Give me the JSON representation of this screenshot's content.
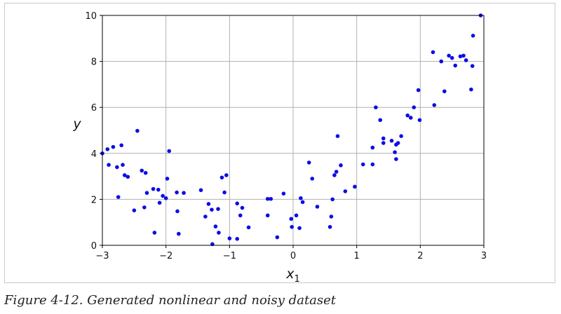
{
  "chart_data": {
    "type": "scatter",
    "title": "",
    "xlabel": "x",
    "xlabel_subscript": "1",
    "ylabel": "y",
    "xlim": [
      -3,
      3
    ],
    "ylim": [
      0,
      10
    ],
    "xticks": [
      -3,
      -2,
      -1,
      0,
      1,
      2,
      3
    ],
    "yticks": [
      0,
      2,
      4,
      6,
      8,
      10
    ],
    "xtick_labels": [
      "−3",
      "−2",
      "−1",
      "0",
      "1",
      "2",
      "3"
    ],
    "ytick_labels": [
      "0",
      "2",
      "4",
      "6",
      "8",
      "10"
    ],
    "grid": true,
    "marker_color": "#0d0de6",
    "points": [
      [
        -3.0,
        4.0
      ],
      [
        -2.92,
        4.18
      ],
      [
        -2.83,
        4.28
      ],
      [
        -2.7,
        4.35
      ],
      [
        -2.9,
        3.5
      ],
      [
        -2.77,
        3.4
      ],
      [
        -2.68,
        3.5
      ],
      [
        -2.65,
        3.05
      ],
      [
        -2.6,
        2.98
      ],
      [
        -2.75,
        2.1
      ],
      [
        -2.5,
        1.52
      ],
      [
        -2.45,
        4.98
      ],
      [
        -2.38,
        3.25
      ],
      [
        -2.32,
        3.15
      ],
      [
        -2.3,
        2.28
      ],
      [
        -2.2,
        2.45
      ],
      [
        -2.12,
        2.42
      ],
      [
        -2.05,
        2.15
      ],
      [
        -2.0,
        2.05
      ],
      [
        -1.98,
        2.9
      ],
      [
        -1.95,
        4.1
      ],
      [
        -2.18,
        0.55
      ],
      [
        -1.8,
        0.5
      ],
      [
        -1.83,
        2.3
      ],
      [
        -1.82,
        1.48
      ],
      [
        -1.72,
        2.28
      ],
      [
        -2.1,
        1.85
      ],
      [
        -2.34,
        1.65
      ],
      [
        -1.45,
        2.4
      ],
      [
        -1.38,
        1.25
      ],
      [
        -1.33,
        1.8
      ],
      [
        -1.28,
        1.55
      ],
      [
        -1.22,
        0.82
      ],
      [
        -1.18,
        1.58
      ],
      [
        -1.17,
        0.55
      ],
      [
        -1.12,
        2.95
      ],
      [
        -1.08,
        2.3
      ],
      [
        -1.05,
        3.05
      ],
      [
        -1.0,
        0.3
      ],
      [
        -1.27,
        0.05
      ],
      [
        -0.88,
        1.82
      ],
      [
        -0.88,
        0.28
      ],
      [
        -0.8,
        1.63
      ],
      [
        -0.7,
        0.78
      ],
      [
        -0.83,
        1.3
      ],
      [
        -0.4,
        2.02
      ],
      [
        -0.35,
        2.02
      ],
      [
        -0.4,
        1.3
      ],
      [
        -0.25,
        0.35
      ],
      [
        -0.15,
        2.25
      ],
      [
        -0.03,
        1.15
      ],
      [
        -0.02,
        0.8
      ],
      [
        0.05,
        1.3
      ],
      [
        0.1,
        0.75
      ],
      [
        0.12,
        2.05
      ],
      [
        0.15,
        1.88
      ],
      [
        0.25,
        3.6
      ],
      [
        0.3,
        2.9
      ],
      [
        0.38,
        1.68
      ],
      [
        0.58,
        0.8
      ],
      [
        0.6,
        1.25
      ],
      [
        0.62,
        2.0
      ],
      [
        0.65,
        3.05
      ],
      [
        0.68,
        3.2
      ],
      [
        0.7,
        4.75
      ],
      [
        0.75,
        3.48
      ],
      [
        0.82,
        2.35
      ],
      [
        0.97,
        2.55
      ],
      [
        1.1,
        3.52
      ],
      [
        1.25,
        3.52
      ],
      [
        1.25,
        4.25
      ],
      [
        1.3,
        6.0
      ],
      [
        1.37,
        5.45
      ],
      [
        1.42,
        4.45
      ],
      [
        1.42,
        4.65
      ],
      [
        1.55,
        4.55
      ],
      [
        1.6,
        4.05
      ],
      [
        1.62,
        3.75
      ],
      [
        1.62,
        4.38
      ],
      [
        1.65,
        4.45
      ],
      [
        1.7,
        4.75
      ],
      [
        1.8,
        5.65
      ],
      [
        1.85,
        5.55
      ],
      [
        1.9,
        6.0
      ],
      [
        1.97,
        6.75
      ],
      [
        1.99,
        5.45
      ],
      [
        2.2,
        8.4
      ],
      [
        2.22,
        6.1
      ],
      [
        2.33,
        8.0
      ],
      [
        2.38,
        6.7
      ],
      [
        2.45,
        8.25
      ],
      [
        2.55,
        7.82
      ],
      [
        2.63,
        8.22
      ],
      [
        2.68,
        8.25
      ],
      [
        2.72,
        8.05
      ],
      [
        2.8,
        6.78
      ],
      [
        2.82,
        7.8
      ],
      [
        2.83,
        9.12
      ],
      [
        2.95,
        10.0
      ],
      [
        2.5,
        8.15
      ]
    ]
  },
  "caption": "Figure 4-12. Generated nonlinear and noisy dataset"
}
